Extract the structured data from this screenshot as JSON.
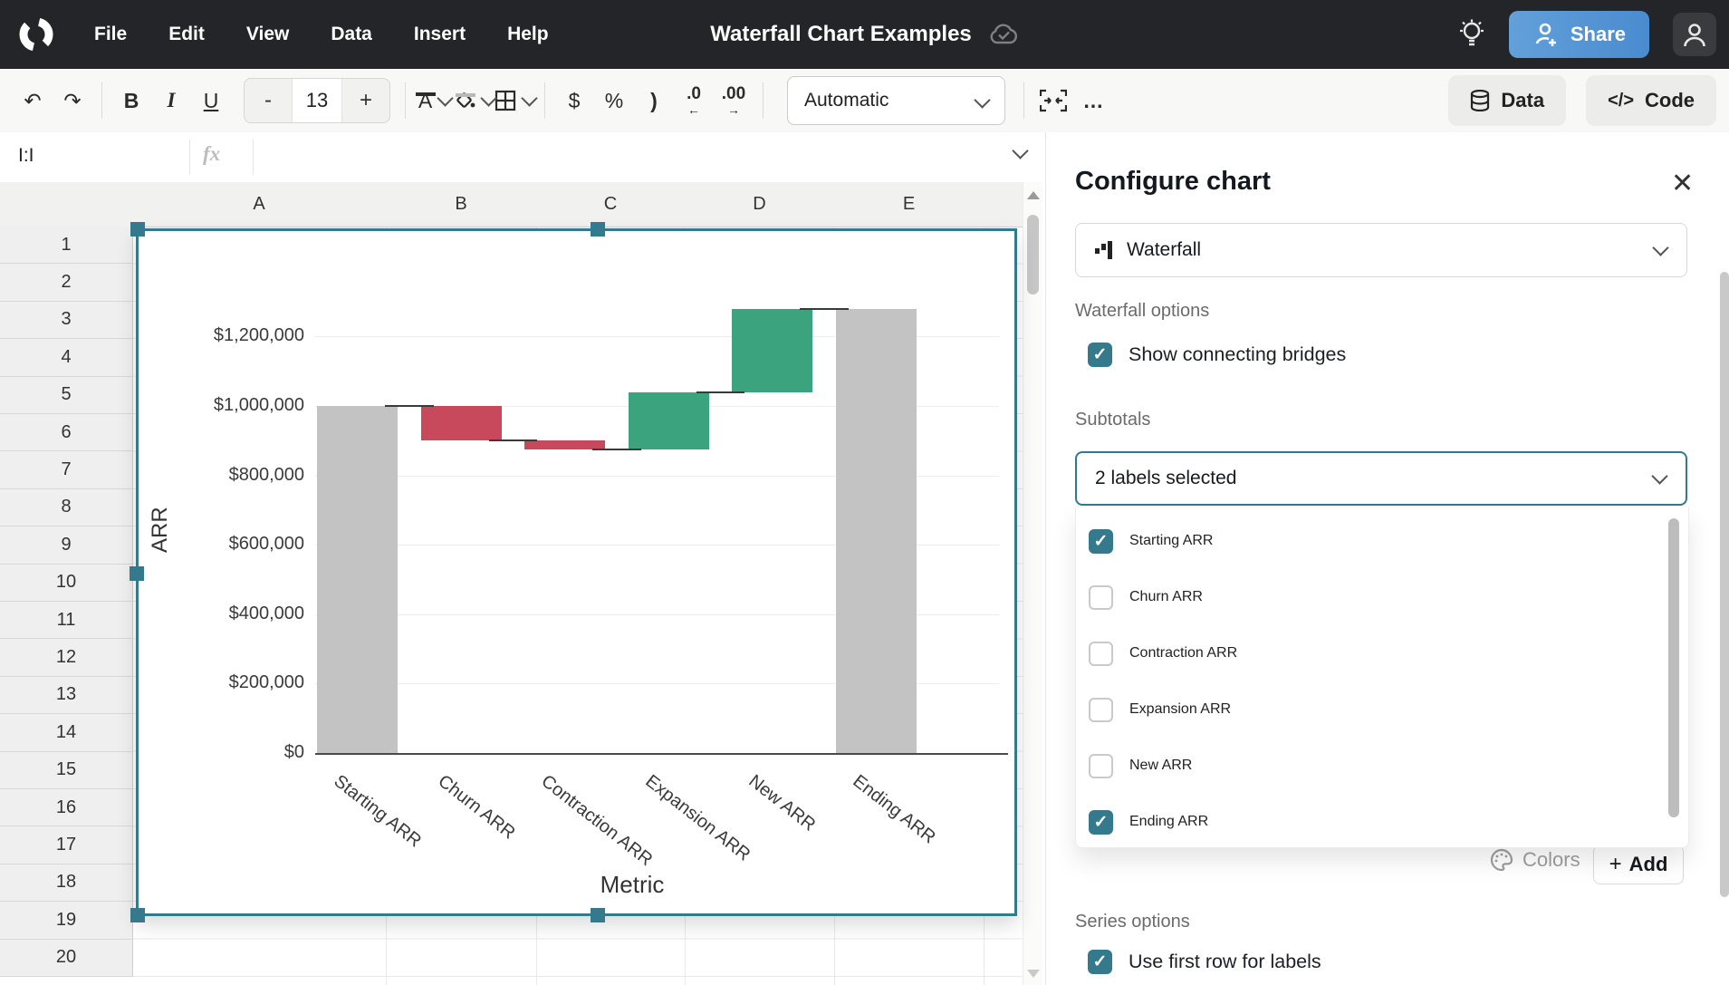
{
  "colors": {
    "accent_teal": "#35798C",
    "bar_total": "#C3C3C3",
    "bar_negative": "#C8495C",
    "bar_positive": "#3BA47E",
    "bridge": "#3A3A3A",
    "topbar": "#242528",
    "share_gradient": [
      "#63A0DA",
      "#4A8BD0"
    ]
  },
  "menubar": {
    "menus": [
      "File",
      "Edit",
      "View",
      "Data",
      "Insert",
      "Help"
    ],
    "title": "Waterfall Chart Examples",
    "share_label": "Share"
  },
  "toolbar": {
    "bold": "B",
    "italic": "I",
    "underline": "U",
    "minus": "-",
    "font_size": "13",
    "plus": "+",
    "text_color_letter": "A",
    "dollar": "$",
    "percent": "%",
    "paren": ")",
    "dec_decrease": ".0",
    "dec_decrease_arrow": "←",
    "dec_increase": ".00",
    "dec_increase_arrow": "→",
    "format_mode": "Automatic",
    "more": "…",
    "data_label": "Data",
    "code_label": "Code"
  },
  "formula_bar": {
    "name_box": "I:I",
    "fx": "fx"
  },
  "grid": {
    "columns": [
      "A",
      "B",
      "C",
      "D",
      "E"
    ],
    "rows": [
      "1",
      "2",
      "3",
      "4",
      "5",
      "6",
      "7",
      "8",
      "9",
      "10",
      "11",
      "12",
      "13",
      "14",
      "15",
      "16",
      "17",
      "18",
      "19",
      "20"
    ]
  },
  "chart_data": {
    "type": "waterfall",
    "xlabel": "Metric",
    "ylabel": "ARR",
    "categories": [
      "Starting ARR",
      "Churn ARR",
      "Contraction ARR",
      "Expansion ARR",
      "New ARR",
      "Ending ARR"
    ],
    "values": [
      1000000,
      -100000,
      -25000,
      165000,
      240000,
      1280000
    ],
    "kinds": [
      "total",
      "decrease",
      "decrease",
      "increase",
      "increase",
      "total"
    ],
    "running_levels": [
      1000000,
      900000,
      875000,
      1040000,
      1280000,
      1280000
    ],
    "ylim": [
      0,
      1400000
    ],
    "yticks": [
      0,
      200000,
      400000,
      600000,
      800000,
      1000000,
      1200000
    ],
    "ytick_labels": [
      "$0",
      "$200,000",
      "$400,000",
      "$600,000",
      "$800,000",
      "$1,000,000",
      "$1,200,000"
    ],
    "grid": true,
    "connecting_bridges": true,
    "legend": "none"
  },
  "panel": {
    "title": "Configure chart",
    "chart_type": "Waterfall",
    "waterfall_options_label": "Waterfall options",
    "show_bridges_label": "Show connecting bridges",
    "show_bridges_checked": true,
    "subtotals_label": "Subtotals",
    "subtotals_value": "2 labels selected",
    "subtotal_items": [
      {
        "label": "Starting ARR",
        "checked": true
      },
      {
        "label": "Churn ARR",
        "checked": false
      },
      {
        "label": "Contraction ARR",
        "checked": false
      },
      {
        "label": "Expansion ARR",
        "checked": false
      },
      {
        "label": "New ARR",
        "checked": false
      },
      {
        "label": "Ending ARR",
        "checked": true
      }
    ],
    "colors_button": "Colors",
    "add_button": "Add",
    "series_options_label": "Series options",
    "first_row_label": "Use first row for labels",
    "first_row_checked": true
  }
}
